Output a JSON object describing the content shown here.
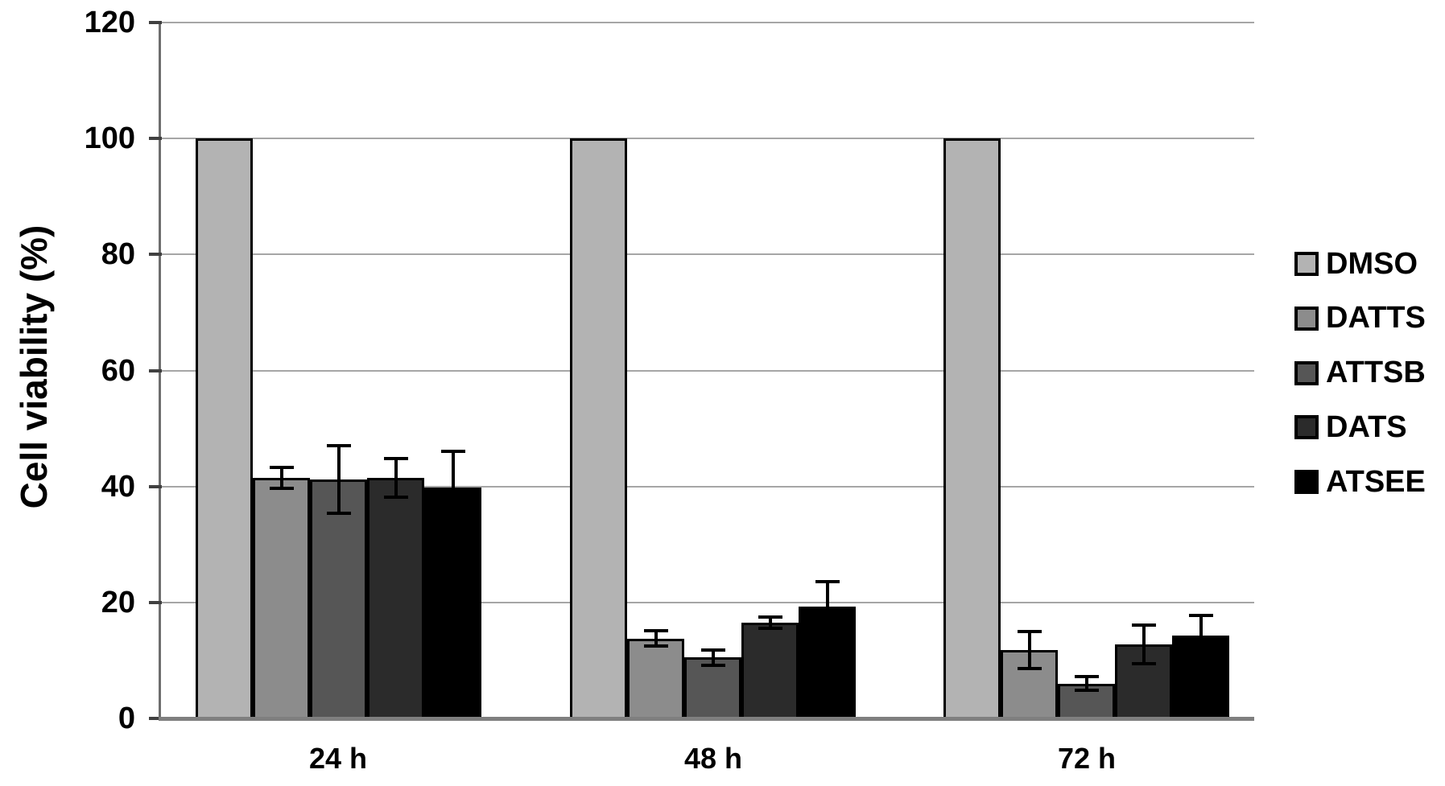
{
  "chart_data": {
    "type": "bar",
    "title": "",
    "ylabel": "Cell viability (%)",
    "xlabel": "",
    "ylim": [
      0,
      120
    ],
    "y_ticks": [
      0,
      20,
      40,
      60,
      80,
      100,
      120
    ],
    "grid": true,
    "legend_position": "right",
    "categories": [
      "24 h",
      "48 h",
      "72 h"
    ],
    "series": [
      {
        "name": "DMSO",
        "color": "#b3b3b3",
        "values": [
          100,
          100,
          100
        ],
        "errors": [
          0,
          0,
          0
        ]
      },
      {
        "name": "DATTS",
        "color": "#8c8c8c",
        "values": [
          41.5,
          13.8,
          11.8
        ],
        "errors": [
          1.8,
          1.3,
          3.2
        ]
      },
      {
        "name": "ATTSB",
        "color": "#565656",
        "values": [
          41.2,
          10.5,
          6.0
        ],
        "errors": [
          5.8,
          1.3,
          1.2
        ]
      },
      {
        "name": "DATS",
        "color": "#2b2b2b",
        "values": [
          41.5,
          16.5,
          12.8
        ],
        "errors": [
          3.3,
          1.0,
          3.3
        ]
      },
      {
        "name": "ATSEE",
        "color": "#000000",
        "values": [
          39.8,
          19.3,
          14.3
        ],
        "errors": [
          6.2,
          4.3,
          3.4
        ]
      }
    ],
    "error_bar_color": "#000000",
    "gridline_color": "#a6a6a6",
    "axis_color": "#6e6e6e",
    "baseline_color": "#7f7f7f"
  }
}
